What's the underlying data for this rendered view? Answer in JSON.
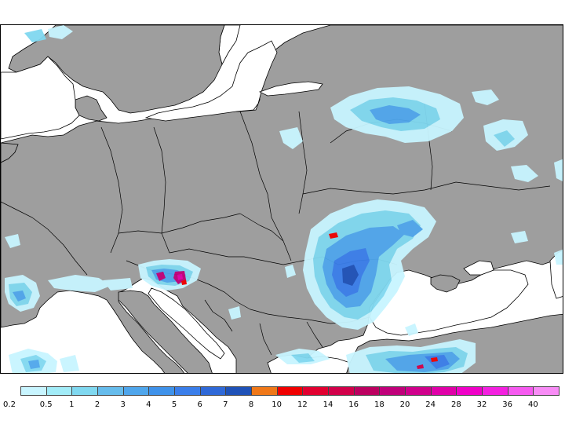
{
  "map": {
    "land_color": "#9e9e9e",
    "sea_color": "#ffffff",
    "border_color": "#000000"
  },
  "legend": {
    "colors": [
      "#c8f5ff",
      "#a2ecf8",
      "#80d8f0",
      "#66bcec",
      "#4fa6ec",
      "#3f92ea",
      "#3a7eea",
      "#2f69d8",
      "#1f52b8",
      "#f07818",
      "#f00000",
      "#e20030",
      "#d2004a",
      "#bc0060",
      "#c0007a",
      "#d0008c",
      "#e000a8",
      "#f000c8",
      "#f420e0",
      "#f65af0",
      "#f88cf6"
    ],
    "labels": [
      "0.2",
      "0.5",
      "1",
      "2",
      "3",
      "4",
      "5",
      "6",
      "7",
      "8",
      "10",
      "12",
      "14",
      "16",
      "18",
      "20",
      "24",
      "28",
      "32",
      "36",
      "40"
    ]
  }
}
